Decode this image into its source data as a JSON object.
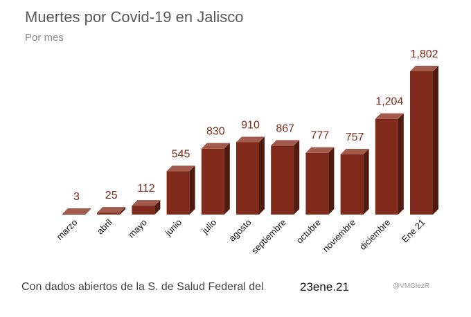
{
  "chart_data": {
    "type": "bar",
    "title": "Muertes por Covid-19 en Jalisco",
    "subtitle": "Por mes",
    "categories": [
      "marzo",
      "abril",
      "mayo",
      "junio",
      "julio",
      "agosto",
      "septiembre",
      "octubre",
      "noviembre",
      "diciembre",
      "Ene 21"
    ],
    "values": [
      3,
      25,
      112,
      545,
      830,
      910,
      867,
      777,
      757,
      1204,
      1802
    ],
    "value_labels": [
      "3",
      "25",
      "112",
      "545",
      "830",
      "910",
      "867",
      "777",
      "757",
      "1,204",
      "1,802"
    ],
    "xlabel": "",
    "ylabel": "",
    "ylim": [
      0,
      1802
    ],
    "grid": false,
    "style": "3d",
    "colors": {
      "front": "#7f2a1a",
      "top": "#a25a4c",
      "side": "#4f1a10",
      "label": "#7f2a1a"
    }
  },
  "footer": {
    "source": "Con dados abiertos  de la S. de Salud Federal del",
    "date": "23ene.21",
    "handle": "@VMGlezR"
  }
}
